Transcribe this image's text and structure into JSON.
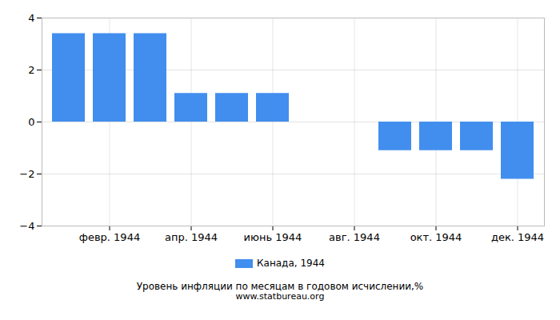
{
  "chart_data": {
    "type": "bar",
    "title": "Уровень инфляции по месяцам в годовом исчислении,%",
    "subtitle": "www.statbureau.org",
    "categories": [
      null,
      "февр. 1944",
      null,
      "апр. 1944",
      null,
      "июнь 1944",
      null,
      "авг. 1944",
      null,
      "окт. 1944",
      null,
      "дек. 1944"
    ],
    "series": [
      {
        "name": "Канада, 1944",
        "color": "#428eee",
        "values": [
          3.4,
          3.4,
          3.4,
          1.1,
          1.1,
          1.1,
          0,
          0,
          -1.1,
          -1.1,
          -1.1,
          -2.2
        ]
      }
    ],
    "ylim": [
      -4,
      4
    ],
    "yticks": [
      -4,
      -2,
      0,
      2,
      4
    ],
    "grid": true,
    "legend": "bottom"
  }
}
